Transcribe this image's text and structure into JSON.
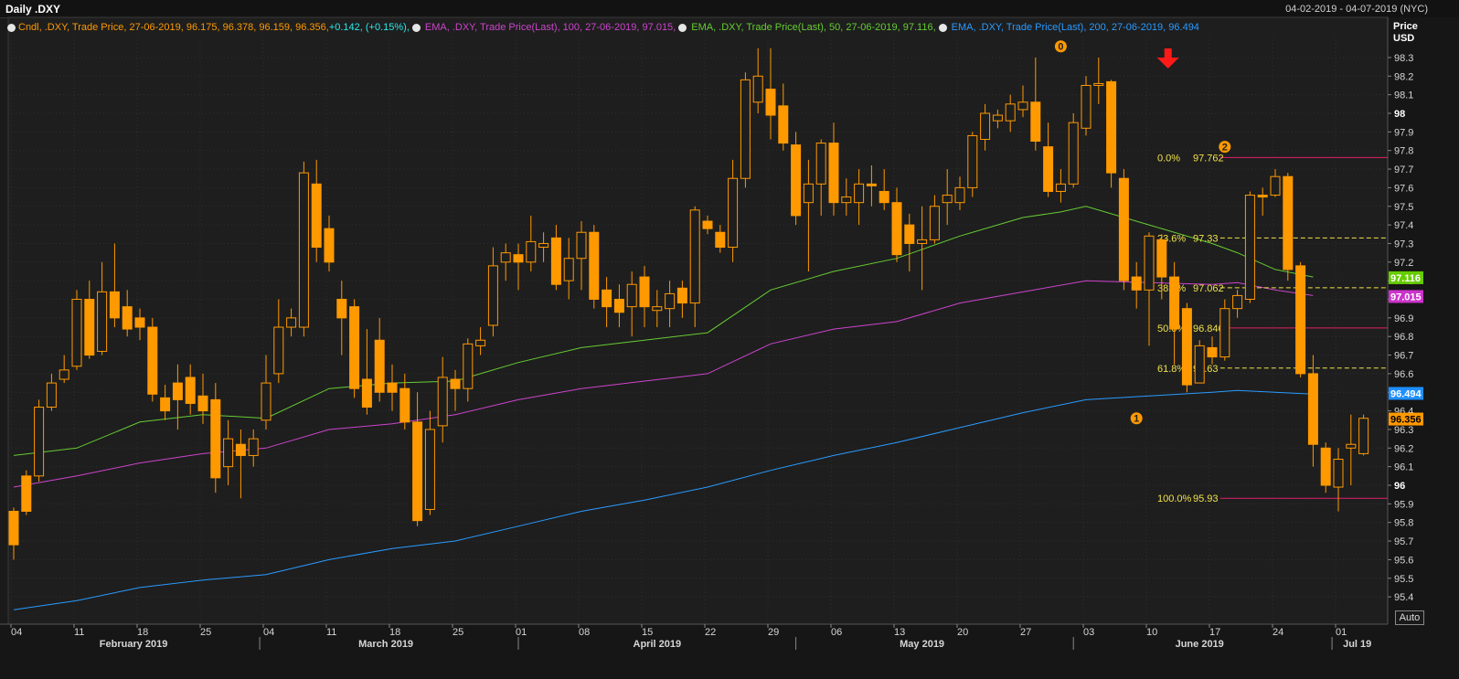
{
  "header": {
    "title": "Daily .DXY",
    "date_range": "04-02-2019 - 04-07-2019 (NYC)"
  },
  "legend": {
    "candle": {
      "prefix": "Cndl, .DXY, Trade Price, 27-06-2019, 96.175, 96.378, 96.159, 96.356, ",
      "change": "+0.142, (+0.15%),",
      "color": "#ff9900",
      "change_color": "#2ee6e6"
    },
    "ema100": {
      "text": "EMA, .DXY, Trade Price(Last), 100, 27-06-2019, 97.015,",
      "color": "#cc44cc"
    },
    "ema50": {
      "text": "EMA, .DXY, Trade Price(Last), 50, 27-06-2019, 97.116,",
      "color": "#66cc33"
    },
    "ema200": {
      "text": "EMA, .DXY, Trade Price(Last), 200, 27-06-2019, 96.494",
      "color": "#2a9bff"
    }
  },
  "auto_button": "Auto",
  "chart_data": {
    "type": "candlestick",
    "y_axis": {
      "title_line1": "Price",
      "title_line2": "USD",
      "min": 95.3,
      "max": 98.4,
      "ticks": [
        95.4,
        95.5,
        95.6,
        95.7,
        95.8,
        95.9,
        96,
        96.1,
        96.2,
        96.3,
        96.4,
        96.5,
        96.6,
        96.7,
        96.8,
        96.9,
        97,
        97.1,
        97.2,
        97.3,
        97.4,
        97.5,
        97.6,
        97.7,
        97.8,
        97.9,
        98,
        98.1,
        98.2,
        98.3
      ],
      "tick_labels": [
        "95.4",
        "95.5",
        "95.6",
        "95.7",
        "95.8",
        "95.9",
        "96",
        "96.1",
        "96.2",
        "96.3",
        "96.4",
        "96.5",
        "96.6",
        "96.7",
        "96.8",
        "96.9",
        "97",
        "97.1",
        "97.2",
        "97.3",
        "97.4",
        "97.5",
        "97.6",
        "97.7",
        "97.8",
        "97.9",
        "98",
        "98.1",
        "98.2",
        "98.3"
      ],
      "bold_labels": [
        "96",
        "97",
        "98"
      ]
    },
    "x_day_labels": [
      "04",
      "11",
      "18",
      "25",
      "04",
      "11",
      "18",
      "25",
      "01",
      "08",
      "15",
      "22",
      "29",
      "06",
      "13",
      "20",
      "27",
      "03",
      "10",
      "17",
      "24",
      "01"
    ],
    "x_day_bars": [
      0,
      5,
      10,
      15,
      20,
      25,
      30,
      35,
      40,
      45,
      50,
      55,
      60,
      65,
      70,
      75,
      80,
      85,
      90,
      95,
      100,
      105
    ],
    "month_labels": [
      {
        "label": "February 2019",
        "bar": 9.5
      },
      {
        "label": "March 2019",
        "bar": 29.5
      },
      {
        "label": "April 2019",
        "bar": 51
      },
      {
        "label": "May 2019",
        "bar": 72
      },
      {
        "label": "June 2019",
        "bar": 94
      },
      {
        "label": "Jul 19",
        "bar": 106.5
      }
    ],
    "month_dividers": [
      19.5,
      40,
      62,
      84,
      104.5
    ],
    "candles": [
      [
        95.86,
        95.68,
        95.6,
        95.88
      ],
      [
        96.05,
        95.86,
        95.84,
        96.08
      ],
      [
        96.05,
        96.42,
        96.02,
        96.46
      ],
      [
        96.42,
        96.55,
        96.4,
        96.6
      ],
      [
        96.57,
        96.62,
        96.55,
        96.7
      ],
      [
        96.64,
        97.0,
        96.62,
        97.05
      ],
      [
        97.0,
        96.7,
        96.68,
        97.1
      ],
      [
        96.72,
        97.04,
        96.7,
        97.2
      ],
      [
        97.04,
        96.9,
        96.85,
        97.3
      ],
      [
        96.96,
        96.84,
        96.8,
        97.05
      ],
      [
        96.9,
        96.85,
        96.78,
        96.95
      ],
      [
        96.85,
        96.49,
        96.45,
        96.9
      ],
      [
        96.47,
        96.4,
        96.35,
        96.54
      ],
      [
        96.55,
        96.46,
        96.3,
        96.65
      ],
      [
        96.58,
        96.44,
        96.38,
        96.65
      ],
      [
        96.48,
        96.4,
        96.33,
        96.6
      ],
      [
        96.46,
        96.04,
        95.96,
        96.55
      ],
      [
        96.1,
        96.25,
        96.0,
        96.35
      ],
      [
        96.22,
        96.16,
        95.93,
        96.3
      ],
      [
        96.16,
        96.25,
        96.1,
        96.3
      ],
      [
        96.35,
        96.55,
        96.3,
        96.7
      ],
      [
        96.6,
        96.85,
        96.55,
        97.0
      ],
      [
        96.85,
        96.9,
        96.8,
        96.95
      ],
      [
        96.85,
        97.68,
        96.8,
        97.74
      ],
      [
        97.62,
        97.28,
        97.2,
        97.75
      ],
      [
        97.38,
        97.2,
        97.15,
        97.45
      ],
      [
        97.0,
        96.9,
        96.7,
        97.1
      ],
      [
        96.96,
        96.52,
        96.47,
        97.0
      ],
      [
        96.57,
        96.42,
        96.38,
        96.84
      ],
      [
        96.78,
        96.5,
        96.45,
        96.9
      ],
      [
        96.55,
        96.5,
        96.4,
        96.65
      ],
      [
        96.52,
        96.34,
        96.3,
        96.6
      ],
      [
        96.34,
        95.81,
        95.78,
        96.5
      ],
      [
        95.87,
        96.3,
        95.84,
        96.4
      ],
      [
        96.32,
        96.58,
        96.23,
        96.69
      ],
      [
        96.57,
        96.52,
        96.4,
        96.62
      ],
      [
        96.52,
        96.76,
        96.45,
        96.79
      ],
      [
        96.75,
        96.78,
        96.7,
        96.85
      ],
      [
        96.86,
        97.18,
        96.8,
        97.28
      ],
      [
        97.2,
        97.25,
        97.1,
        97.3
      ],
      [
        97.24,
        97.2,
        97.05,
        97.3
      ],
      [
        97.2,
        97.31,
        97.15,
        97.45
      ],
      [
        97.28,
        97.3,
        97.2,
        97.36
      ],
      [
        97.33,
        97.08,
        97.05,
        97.4
      ],
      [
        97.1,
        97.22,
        97.0,
        97.33
      ],
      [
        97.22,
        97.36,
        97.05,
        97.42
      ],
      [
        97.36,
        97.0,
        96.95,
        97.4
      ],
      [
        97.05,
        96.96,
        96.85,
        97.12
      ],
      [
        97.0,
        96.93,
        96.85,
        97.08
      ],
      [
        96.96,
        97.08,
        96.8,
        97.15
      ],
      [
        97.12,
        96.96,
        96.85,
        97.18
      ],
      [
        96.94,
        96.96,
        96.85,
        97.05
      ],
      [
        96.95,
        97.03,
        96.85,
        97.1
      ],
      [
        97.06,
        96.98,
        96.9,
        97.1
      ],
      [
        96.98,
        97.48,
        96.85,
        97.5
      ],
      [
        97.42,
        97.38,
        97.35,
        97.45
      ],
      [
        97.36,
        97.28,
        97.25,
        97.4
      ],
      [
        97.28,
        97.65,
        97.2,
        97.75
      ],
      [
        97.65,
        98.18,
        97.6,
        98.22
      ],
      [
        98.06,
        98.2,
        98.0,
        98.35
      ],
      [
        98.13,
        97.99,
        97.86,
        98.35
      ],
      [
        98.04,
        97.84,
        97.8,
        98.16
      ],
      [
        97.83,
        97.45,
        97.4,
        97.9
      ],
      [
        97.52,
        97.62,
        97.15,
        97.75
      ],
      [
        97.62,
        97.84,
        97.45,
        97.86
      ],
      [
        97.84,
        97.52,
        97.45,
        97.95
      ],
      [
        97.52,
        97.55,
        97.45,
        97.65
      ],
      [
        97.52,
        97.62,
        97.4,
        97.7
      ],
      [
        97.62,
        97.61,
        97.5,
        97.72
      ],
      [
        97.58,
        97.52,
        97.48,
        97.7
      ],
      [
        97.52,
        97.24,
        97.2,
        97.6
      ],
      [
        97.4,
        97.3,
        97.15,
        97.46
      ],
      [
        97.3,
        97.32,
        97.05,
        97.5
      ],
      [
        97.32,
        97.5,
        97.3,
        97.56
      ],
      [
        97.52,
        97.56,
        97.4,
        97.7
      ],
      [
        97.52,
        97.6,
        97.48,
        97.66
      ],
      [
        97.6,
        97.88,
        97.55,
        97.9
      ],
      [
        97.86,
        98.0,
        97.8,
        98.05
      ],
      [
        97.96,
        97.99,
        97.92,
        98.02
      ],
      [
        97.96,
        98.05,
        97.9,
        98.1
      ],
      [
        98.02,
        98.06,
        97.98,
        98.15
      ],
      [
        98.06,
        97.85,
        97.8,
        98.3
      ],
      [
        97.82,
        97.58,
        97.55,
        97.95
      ],
      [
        97.58,
        97.62,
        97.52,
        97.7
      ],
      [
        97.62,
        97.95,
        97.6,
        98.0
      ],
      [
        97.92,
        98.15,
        97.88,
        98.2
      ],
      [
        98.15,
        98.16,
        98.05,
        98.3
      ],
      [
        98.17,
        97.68,
        97.6,
        98.18
      ],
      [
        97.65,
        97.1,
        97.05,
        97.7
      ],
      [
        97.12,
        97.05,
        96.95,
        97.2
      ],
      [
        97.05,
        97.34,
        96.75,
        97.36
      ],
      [
        97.32,
        97.12,
        97.0,
        97.35
      ],
      [
        97.12,
        96.84,
        96.65,
        97.2
      ],
      [
        96.95,
        96.54,
        96.5,
        96.98
      ],
      [
        96.55,
        96.75,
        96.55,
        96.78
      ],
      [
        96.74,
        96.69,
        96.65,
        96.8
      ],
      [
        96.69,
        96.95,
        96.67,
        97.0
      ],
      [
        96.95,
        97.02,
        96.9,
        97.05
      ],
      [
        97.0,
        97.56,
        96.98,
        97.58
      ],
      [
        97.56,
        97.55,
        97.45,
        97.6
      ],
      [
        97.56,
        97.66,
        97.55,
        97.7
      ],
      [
        97.66,
        97.16,
        97.1,
        97.68
      ],
      [
        97.18,
        96.6,
        96.58,
        97.2
      ],
      [
        96.6,
        96.22,
        96.1,
        96.7
      ],
      [
        96.2,
        96.0,
        95.96,
        96.23
      ],
      [
        95.99,
        96.14,
        95.86,
        96.2
      ],
      [
        96.2,
        96.22,
        96.0,
        96.38
      ],
      [
        96.17,
        96.36,
        96.16,
        96.38
      ]
    ],
    "ema50": [
      [
        0,
        96.16
      ],
      [
        5,
        96.2
      ],
      [
        10,
        96.34
      ],
      [
        15,
        96.38
      ],
      [
        20,
        96.36
      ],
      [
        25,
        96.52
      ],
      [
        30,
        96.55
      ],
      [
        35,
        96.56
      ],
      [
        40,
        96.66
      ],
      [
        45,
        96.74
      ],
      [
        50,
        96.78
      ],
      [
        55,
        96.82
      ],
      [
        60,
        97.05
      ],
      [
        65,
        97.15
      ],
      [
        70,
        97.22
      ],
      [
        75,
        97.34
      ],
      [
        80,
        97.44
      ],
      [
        83,
        97.47
      ],
      [
        85,
        97.5
      ],
      [
        90,
        97.4
      ],
      [
        95,
        97.3
      ],
      [
        97,
        97.25
      ],
      [
        100,
        97.16
      ],
      [
        103,
        97.12
      ]
    ],
    "ema100": [
      [
        0,
        95.99
      ],
      [
        5,
        96.05
      ],
      [
        10,
        96.12
      ],
      [
        15,
        96.17
      ],
      [
        20,
        96.2
      ],
      [
        25,
        96.3
      ],
      [
        30,
        96.33
      ],
      [
        35,
        96.38
      ],
      [
        40,
        96.46
      ],
      [
        45,
        96.52
      ],
      [
        50,
        96.56
      ],
      [
        55,
        96.6
      ],
      [
        60,
        96.76
      ],
      [
        65,
        96.84
      ],
      [
        70,
        96.88
      ],
      [
        75,
        96.98
      ],
      [
        80,
        97.04
      ],
      [
        85,
        97.1
      ],
      [
        90,
        97.09
      ],
      [
        95,
        97.08
      ],
      [
        97,
        97.09
      ],
      [
        100,
        97.05
      ],
      [
        103,
        97.02
      ]
    ],
    "ema200": [
      [
        0,
        95.33
      ],
      [
        5,
        95.38
      ],
      [
        10,
        95.45
      ],
      [
        15,
        95.49
      ],
      [
        20,
        95.52
      ],
      [
        25,
        95.6
      ],
      [
        30,
        95.66
      ],
      [
        35,
        95.7
      ],
      [
        40,
        95.78
      ],
      [
        45,
        95.86
      ],
      [
        50,
        95.92
      ],
      [
        55,
        95.99
      ],
      [
        60,
        96.08
      ],
      [
        65,
        96.16
      ],
      [
        70,
        96.23
      ],
      [
        75,
        96.31
      ],
      [
        80,
        96.39
      ],
      [
        85,
        96.46
      ],
      [
        90,
        96.48
      ],
      [
        95,
        96.5
      ],
      [
        97,
        96.51
      ],
      [
        100,
        96.5
      ],
      [
        103,
        96.49
      ]
    ],
    "fib_levels": [
      {
        "label": "0.0%",
        "value_label": "97.762",
        "value": 97.762,
        "color": "#e0206a",
        "dash": false
      },
      {
        "label": "23.6%",
        "value_label": "97.33",
        "value": 97.33,
        "color": "#f0e24a",
        "dash": true
      },
      {
        "label": "38.2%",
        "value_label": "97.062",
        "value": 97.062,
        "color": "#f0e24a",
        "dash": true
      },
      {
        "label": "50.0%",
        "value_label": "96.846",
        "value": 96.846,
        "color": "#e0206a",
        "dash": false
      },
      {
        "label": "61.8%",
        "value_label": "96.63",
        "value": 96.63,
        "color": "#f0e24a",
        "dash": true
      },
      {
        "label": "100.0%",
        "value_label": "95.93",
        "value": 95.93,
        "color": "#e0206a",
        "dash": false
      }
    ],
    "wave_markers": [
      {
        "label": "0",
        "bar": 83,
        "value": 98.36
      },
      {
        "label": "1",
        "bar": 89,
        "value": 96.36
      },
      {
        "label": "2",
        "bar": 96,
        "value": 97.82
      }
    ],
    "arrow": {
      "direction": "down",
      "bar": 91.5,
      "value": 98.28,
      "color": "#ff1a1a"
    },
    "price_tags": [
      {
        "label": "97.116",
        "value": 97.116,
        "bg": "#66cc00",
        "fg": "#ffffff"
      },
      {
        "label": "97.015",
        "value": 97.015,
        "bg": "#cc33cc",
        "fg": "#ffffff"
      },
      {
        "label": "96.494",
        "value": 96.494,
        "bg": "#1e8fff",
        "fg": "#ffffff"
      },
      {
        "label": "96.356",
        "value": 96.356,
        "bg": "#ff9900",
        "fg": "#000000"
      }
    ],
    "colors": {
      "up": "#ff9900",
      "down": "#ff9900",
      "ema50": "#66cc33",
      "ema100": "#cc44cc",
      "ema200": "#2a9bff",
      "grid": "#2e2e2e"
    }
  }
}
